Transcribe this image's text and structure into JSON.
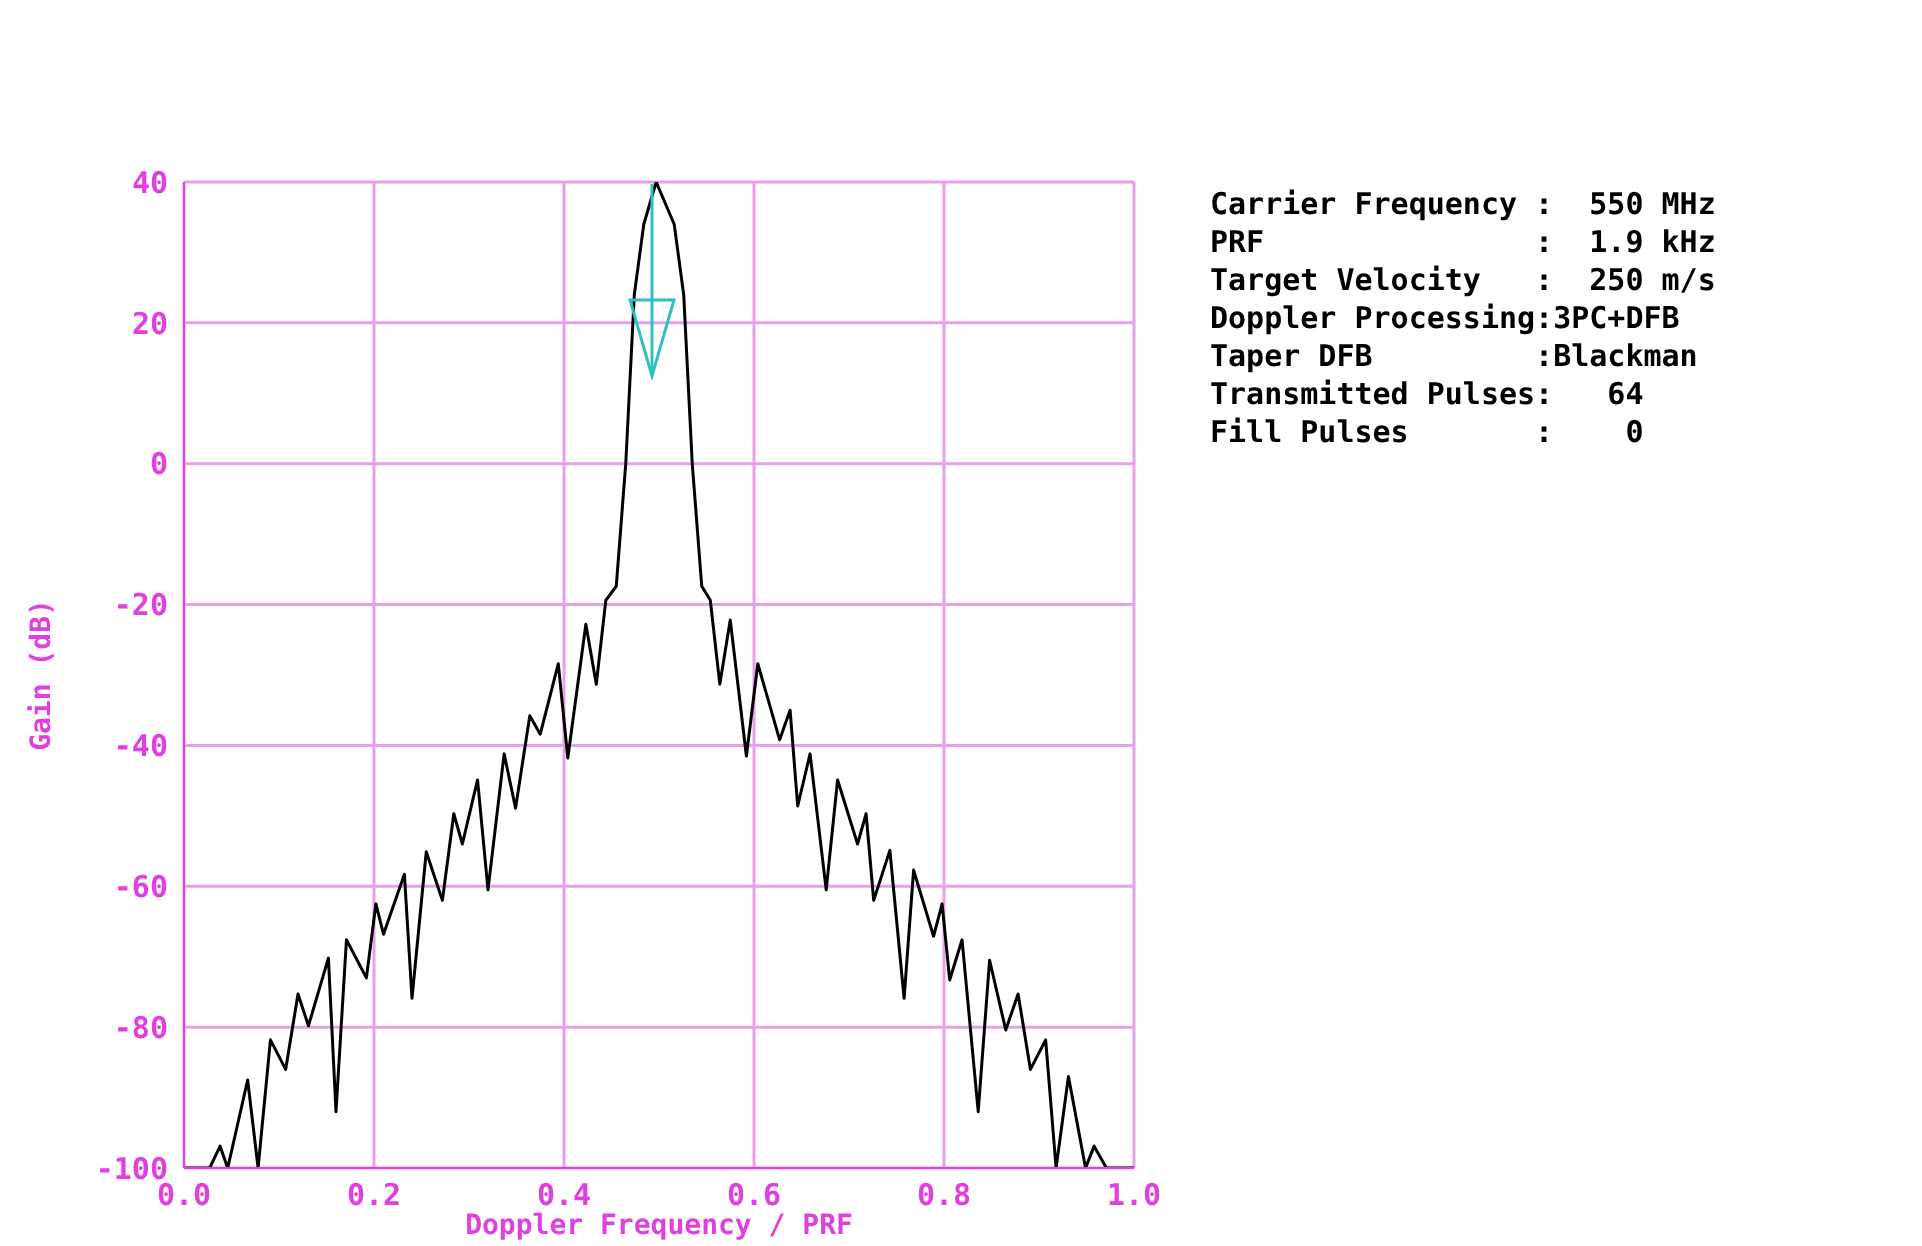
{
  "chart_data": {
    "type": "line",
    "xlabel": "Doppler Frequency / PRF",
    "ylabel": "Gain (dB)",
    "xlim": [
      0,
      1
    ],
    "ylim": [
      -100,
      40
    ],
    "xticks": [
      {
        "value": 0,
        "label": "0.0"
      },
      {
        "value": 0.2,
        "label": "0.2"
      },
      {
        "value": 0.4,
        "label": "0.4"
      },
      {
        "value": 0.6,
        "label": "0.6"
      },
      {
        "value": 0.8,
        "label": "0.8"
      },
      {
        "value": 1,
        "label": "1.0"
      }
    ],
    "yticks": [
      -100,
      -80,
      -60,
      -40,
      -20,
      0,
      20,
      40
    ],
    "grid": true,
    "marker": "none",
    "line_style": "solid",
    "series": [
      {
        "color": "#000000",
        "x": [
          0,
          0.027,
          0.038,
          0.046,
          0.067,
          0.078,
          0.091,
          0.107,
          0.12,
          0.131,
          0.152,
          0.16,
          0.171,
          0.192,
          0.202,
          0.21,
          0.232,
          0.24,
          0.255,
          0.272,
          0.284,
          0.293,
          0.309,
          0.32,
          0.337,
          0.349,
          0.364,
          0.375,
          0.394,
          0.404,
          0.423,
          0.434,
          0.444,
          0.455,
          0.465,
          0.474,
          0.484,
          0.497,
          0.516,
          0.526,
          0.535,
          0.545,
          0.554,
          0.564,
          0.575,
          0.592,
          0.604,
          0.627,
          0.638,
          0.646,
          0.659,
          0.676,
          0.688,
          0.709,
          0.718,
          0.726,
          0.743,
          0.758,
          0.768,
          0.789,
          0.798,
          0.806,
          0.819,
          0.836,
          0.848,
          0.865,
          0.878,
          0.891,
          0.907,
          0.918,
          0.931,
          0.949,
          0.958,
          0.971,
          1
        ],
        "values": [
          -100,
          -100,
          -96.9,
          -100,
          -87.5,
          -100,
          -81.8,
          -86,
          -75.3,
          -79.8,
          -70.2,
          -92,
          -67.6,
          -73,
          -62.5,
          -66.8,
          -58.3,
          -75.9,
          -55.1,
          -62,
          -49.7,
          -54,
          -44.9,
          -60.5,
          -41.2,
          -48.9,
          -35.8,
          -38.4,
          -28.4,
          -41.8,
          -22.8,
          -31.3,
          -19.4,
          -17.4,
          0,
          24,
          34,
          40,
          34,
          24,
          0,
          -17.4,
          -19.4,
          -31.3,
          -22.2,
          -41.5,
          -28.4,
          -39.2,
          -35,
          -48.6,
          -41.2,
          -60.5,
          -44.9,
          -54,
          -49.7,
          -62,
          -54.9,
          -75.9,
          -57.7,
          -67.1,
          -62.5,
          -73.3,
          -67.6,
          -92,
          -70.5,
          -80.4,
          -75.3,
          -86,
          -81.8,
          -100,
          -87,
          -100,
          -96.9,
          -100,
          -100
        ]
      }
    ],
    "annotations": [
      "Carrier Frequency :  550 MHz",
      "PRF               :  1.9 kHz",
      "Target Velocity   :  250 m/s",
      "Doppler Processing:3PC+DFB",
      "Taper DFB         :Blackman",
      "Transmitted Pulses:   64",
      "Fill Pulses       :    0"
    ]
  }
}
